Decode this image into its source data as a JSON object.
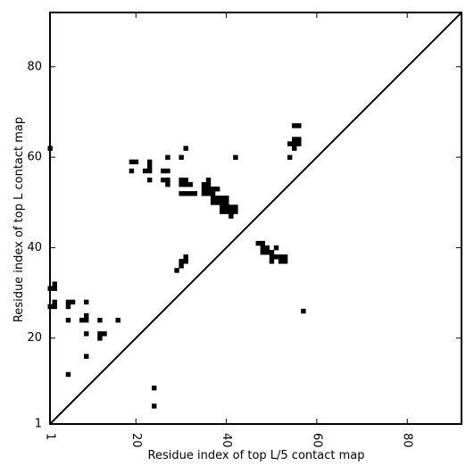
{
  "chart_data": {
    "type": "scatter",
    "title": "",
    "xlabel": "Residue index of top L/5 contact map",
    "ylabel": "Residue index of top L contact map",
    "xlim": [
      1,
      92
    ],
    "ylim": [
      1,
      92
    ],
    "xticks": [
      "1",
      "20",
      "40",
      "60",
      "80"
    ],
    "xtick_values": [
      1,
      20,
      40,
      60,
      80
    ],
    "yticks": [
      "1",
      "20",
      "40",
      "60",
      "80"
    ],
    "ytick_values": [
      1,
      20,
      40,
      60,
      80
    ],
    "xtick_rotation": "vertical",
    "diagonal": "y = x",
    "marker": "filled square",
    "grid": false,
    "legend": "none",
    "colors": {
      "points": "#000000",
      "frame": "#000000",
      "diagonal": "#000000",
      "background": "#ffffff"
    },
    "upper_triangle_points": [
      [
        1,
        62
      ],
      [
        19,
        59
      ],
      [
        20,
        59
      ],
      [
        23,
        59
      ],
      [
        23,
        58
      ],
      [
        19,
        57
      ],
      [
        22,
        57
      ],
      [
        23,
        57
      ],
      [
        26,
        57
      ],
      [
        27,
        57
      ],
      [
        23,
        55
      ],
      [
        26,
        55
      ],
      [
        27,
        55
      ],
      [
        27,
        54
      ],
      [
        27,
        60
      ],
      [
        30,
        60
      ],
      [
        30,
        55
      ],
      [
        31,
        55
      ],
      [
        30,
        54
      ],
      [
        31,
        54
      ],
      [
        32,
        54
      ],
      [
        31,
        62
      ],
      [
        30,
        52
      ],
      [
        31,
        52
      ],
      [
        32,
        52
      ],
      [
        33,
        52
      ],
      [
        35,
        52
      ],
      [
        36,
        52
      ],
      [
        37,
        52
      ],
      [
        35,
        53
      ],
      [
        36,
        53
      ],
      [
        37,
        53
      ],
      [
        38,
        53
      ],
      [
        35,
        54
      ],
      [
        36,
        54
      ],
      [
        36,
        55
      ],
      [
        37,
        51
      ],
      [
        38,
        51
      ],
      [
        39,
        51
      ],
      [
        40,
        51
      ],
      [
        37,
        50
      ],
      [
        38,
        50
      ],
      [
        39,
        50
      ],
      [
        40,
        50
      ],
      [
        39,
        49
      ],
      [
        40,
        49
      ],
      [
        41,
        49
      ],
      [
        42,
        49
      ],
      [
        39,
        48
      ],
      [
        40,
        48
      ],
      [
        41,
        48
      ],
      [
        42,
        48
      ],
      [
        41,
        47
      ],
      [
        42,
        60
      ],
      [
        54,
        60
      ],
      [
        54,
        63
      ],
      [
        55,
        63
      ],
      [
        56,
        63
      ],
      [
        55,
        62
      ],
      [
        55,
        64
      ],
      [
        56,
        64
      ],
      [
        55,
        67
      ],
      [
        56,
        67
      ],
      [
        30,
        37
      ],
      [
        31,
        37
      ],
      [
        31,
        38
      ],
      [
        30,
        36
      ],
      [
        29,
        35
      ],
      [
        47,
        41
      ],
      [
        48,
        41
      ],
      [
        48,
        40
      ],
      [
        49,
        40
      ],
      [
        48,
        39
      ],
      [
        49,
        39
      ],
      [
        50,
        39
      ],
      [
        51,
        40
      ],
      [
        50,
        38
      ],
      [
        51,
        38
      ],
      [
        52,
        38
      ],
      [
        53,
        38
      ],
      [
        50,
        37
      ],
      [
        52,
        37
      ],
      [
        53,
        37
      ],
      [
        57,
        26
      ]
    ],
    "lower_triangle_points": [
      [
        1,
        31
      ],
      [
        2,
        31
      ],
      [
        2,
        32
      ],
      [
        1,
        27
      ],
      [
        2,
        27
      ],
      [
        2,
        28
      ],
      [
        5,
        28
      ],
      [
        6,
        28
      ],
      [
        5,
        27
      ],
      [
        9,
        28
      ],
      [
        5,
        24
      ],
      [
        8,
        24
      ],
      [
        9,
        24
      ],
      [
        9,
        25
      ],
      [
        12,
        24
      ],
      [
        16,
        24
      ],
      [
        9,
        21
      ],
      [
        12,
        21
      ],
      [
        13,
        21
      ],
      [
        12,
        20
      ],
      [
        9,
        16
      ],
      [
        5,
        12
      ],
      [
        24,
        9
      ],
      [
        24,
        5
      ]
    ]
  }
}
